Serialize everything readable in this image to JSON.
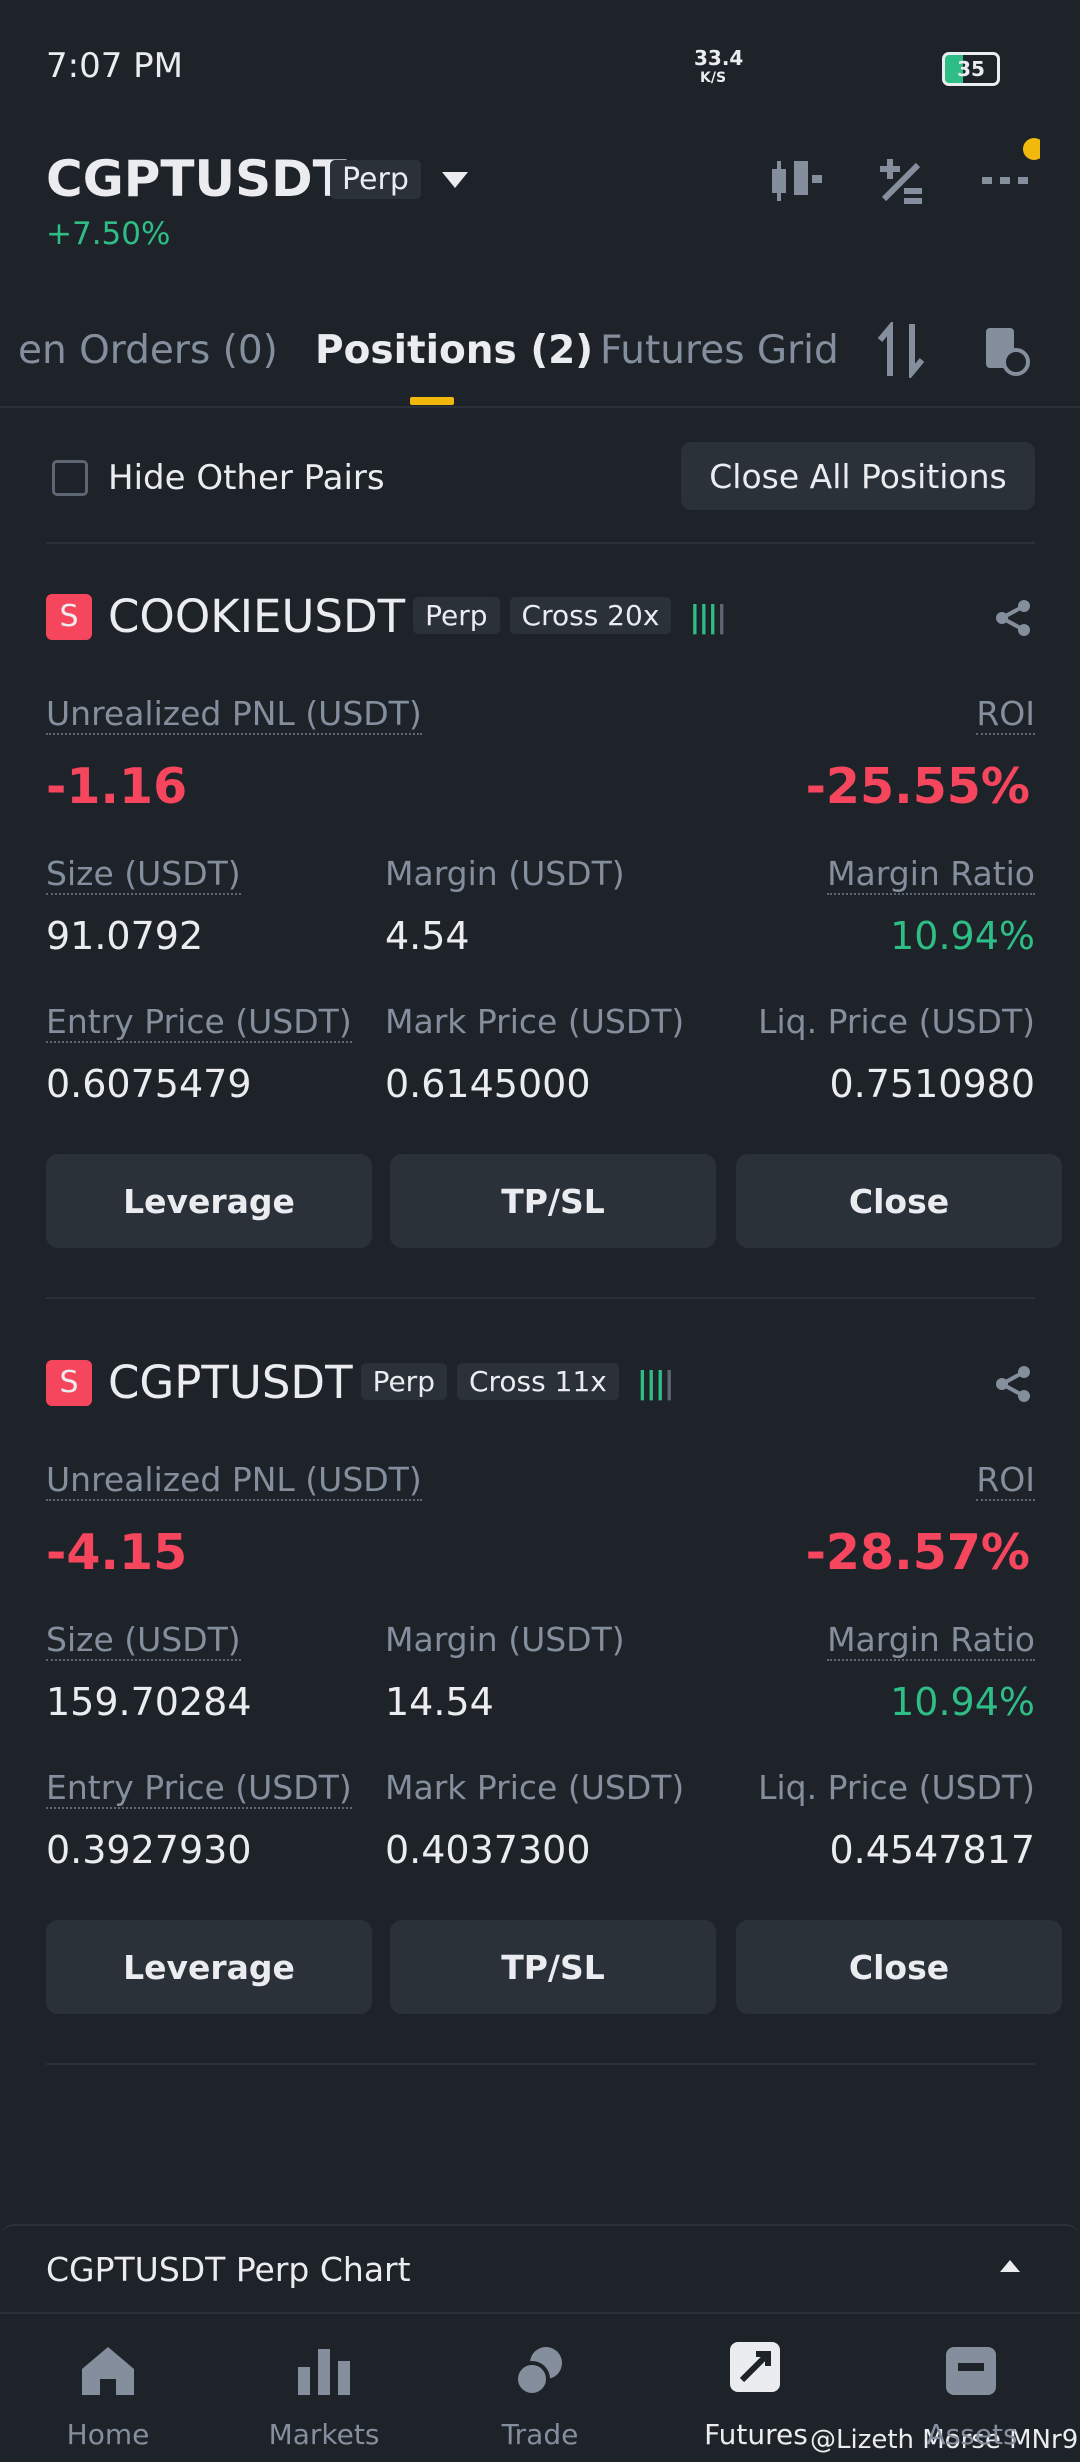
{
  "status": {
    "time": "7:07 PM",
    "speed": "33.4",
    "speed_unit": "K/S",
    "battery": "35"
  },
  "header": {
    "symbol": "CGPTUSDT",
    "badge": "Perp",
    "change": "+7.50%"
  },
  "tabs": [
    "en Orders (0)",
    "Positions (2)",
    "Futures Grid"
  ],
  "filter": {
    "label": "Hide Other Pairs",
    "button": "Close All Positions"
  },
  "positions": [
    {
      "side": "S",
      "symbol": "COOKIEUSDT",
      "type": "Perp",
      "mode": "Cross 20x",
      "pnl_label": "Unrealized PNL (USDT)",
      "pnl": "-1.16",
      "roi_label": "ROI",
      "roi": "-25.55%",
      "fields": [
        {
          "label": "Size (USDT)",
          "value": "91.0792"
        },
        {
          "label": "Margin (USDT)",
          "value": "4.54"
        },
        {
          "label": "Margin Ratio",
          "value": "10.94%"
        },
        {
          "label": "Entry Price (USDT)",
          "value": "0.6075479"
        },
        {
          "label": "Mark Price (USDT)",
          "value": "0.6145000"
        },
        {
          "label": "Liq. Price (USDT)",
          "value": "0.7510980"
        }
      ],
      "buttons": [
        "Leverage",
        "TP/SL",
        "Close"
      ]
    },
    {
      "side": "S",
      "symbol": "CGPTUSDT",
      "type": "Perp",
      "mode": "Cross 11x",
      "pnl_label": "Unrealized PNL (USDT)",
      "pnl": "-4.15",
      "roi_label": "ROI",
      "roi": "-28.57%",
      "fields": [
        {
          "label": "Size (USDT)",
          "value": "159.70284"
        },
        {
          "label": "Margin (USDT)",
          "value": "14.54"
        },
        {
          "label": "Margin Ratio",
          "value": "10.94%"
        },
        {
          "label": "Entry Price (USDT)",
          "value": "0.3927930"
        },
        {
          "label": "Mark Price (USDT)",
          "value": "0.4037300"
        },
        {
          "label": "Liq. Price (USDT)",
          "value": "0.4547817"
        }
      ],
      "buttons": [
        "Leverage",
        "TP/SL",
        "Close"
      ]
    }
  ],
  "chart_bar": "CGPTUSDT Perp Chart",
  "nav": [
    "Home",
    "Markets",
    "Trade",
    "Futures",
    "Assets"
  ],
  "watermark": "@Lizeth Morse MNr9"
}
